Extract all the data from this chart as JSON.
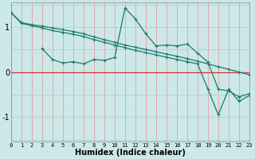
{
  "title": "",
  "xlabel": "Humidex (Indice chaleur)",
  "ylabel": "",
  "bg_color": "#cce8e8",
  "line_color": "#1a7a6e",
  "grid_color_v": "#e8a0a0",
  "xlim": [
    0,
    23
  ],
  "ylim": [
    -1.55,
    1.55
  ],
  "yticks": [
    -1,
    0,
    1
  ],
  "xticks": [
    0,
    1,
    2,
    3,
    4,
    5,
    6,
    7,
    8,
    9,
    10,
    11,
    12,
    13,
    14,
    15,
    16,
    17,
    18,
    19,
    20,
    21,
    22,
    23
  ],
  "curve1_x": [
    0,
    1,
    2,
    3,
    4,
    5,
    6,
    7,
    8,
    9,
    10,
    11,
    12,
    13,
    14,
    15,
    16,
    17,
    18,
    19,
    20,
    21,
    22,
    23
  ],
  "curve1_y": [
    1.32,
    1.1,
    1.05,
    1.02,
    0.98,
    0.94,
    0.9,
    0.85,
    0.78,
    0.72,
    0.66,
    0.6,
    0.55,
    0.5,
    0.45,
    0.4,
    0.35,
    0.3,
    0.24,
    0.18,
    0.12,
    0.06,
    0.0,
    -0.06
  ],
  "curve2_x": [
    0,
    1,
    2,
    3,
    4,
    5,
    6,
    7,
    8,
    9,
    10,
    11,
    12,
    13,
    14,
    15,
    16,
    17,
    18,
    19,
    20,
    21,
    22,
    23
  ],
  "curve2_y": [
    1.32,
    1.08,
    1.03,
    0.98,
    0.92,
    0.88,
    0.84,
    0.79,
    0.72,
    0.66,
    0.6,
    0.54,
    0.48,
    0.43,
    0.38,
    0.33,
    0.28,
    0.23,
    0.18,
    -0.38,
    -0.95,
    -0.38,
    -0.65,
    -0.52
  ],
  "curve3_x": [
    3,
    4,
    5,
    6,
    7,
    8,
    9,
    10,
    11,
    12,
    13,
    14,
    15,
    16,
    17,
    18,
    19,
    20,
    21,
    22,
    23
  ],
  "curve3_y": [
    0.52,
    0.28,
    0.2,
    0.23,
    0.18,
    0.28,
    0.26,
    0.32,
    1.42,
    1.18,
    0.85,
    0.58,
    0.6,
    0.58,
    0.62,
    0.42,
    0.22,
    -0.38,
    -0.42,
    -0.55,
    -0.48
  ]
}
